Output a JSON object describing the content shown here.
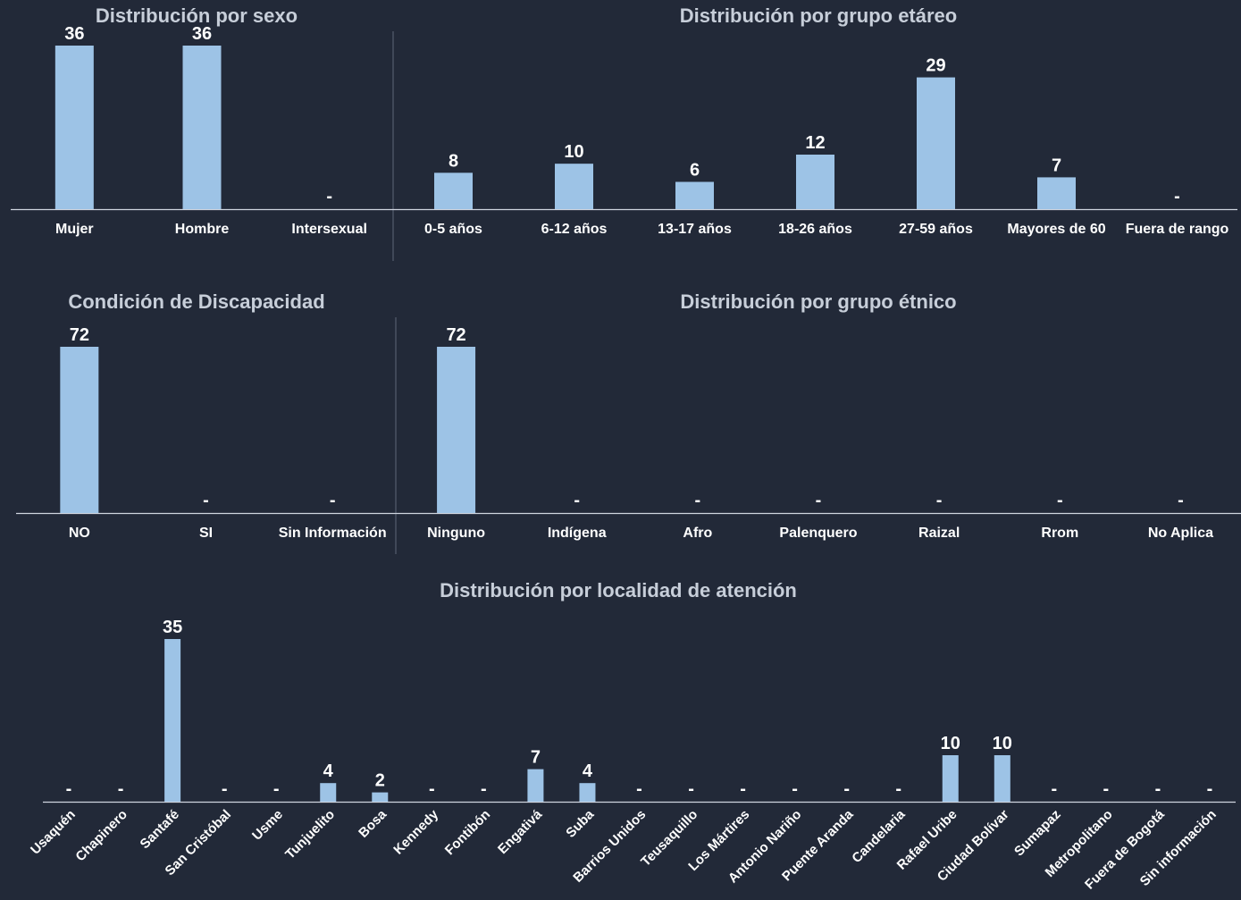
{
  "chart_data": [
    {
      "id": "sexo",
      "type": "bar",
      "title": "Distribución por sexo",
      "categories": [
        "Mujer",
        "Hombre",
        "Intersexual"
      ],
      "values": [
        36,
        36,
        null
      ],
      "labels": [
        "36",
        "36",
        "-"
      ]
    },
    {
      "id": "etareo",
      "type": "bar",
      "title": "Distribución por grupo etáreo",
      "categories": [
        "0-5 años",
        "6-12 años",
        "13-17 años",
        "18-26 años",
        "27-59 años",
        "Mayores de 60",
        "Fuera de rango"
      ],
      "values": [
        8,
        10,
        6,
        12,
        29,
        7,
        null
      ],
      "labels": [
        "8",
        "10",
        "6",
        "12",
        "29",
        "7",
        "-"
      ]
    },
    {
      "id": "discapacidad",
      "type": "bar",
      "title": "Condición de Discapacidad",
      "categories": [
        "NO",
        "SI",
        "Sin Información"
      ],
      "values": [
        72,
        null,
        null
      ],
      "labels": [
        "72",
        "-",
        "-"
      ]
    },
    {
      "id": "etnico",
      "type": "bar",
      "title": "Distribución por grupo étnico",
      "categories": [
        "Ninguno",
        "Indígena",
        "Afro",
        "Palenquero",
        "Raizal",
        "Rrom",
        "No Aplica"
      ],
      "values": [
        72,
        null,
        null,
        null,
        null,
        null,
        null
      ],
      "labels": [
        "72",
        "-",
        "-",
        "-",
        "-",
        "-",
        "-"
      ]
    },
    {
      "id": "localidad",
      "type": "bar",
      "title": "Distribución por localidad de atención",
      "categories": [
        "Usaquén",
        "Chapinero",
        "Santafé",
        "San Cristóbal",
        "Usme",
        "Tunjuelito",
        "Bosa",
        "Kennedy",
        "Fontibón",
        "Engativá",
        "Suba",
        "Barrios Unidos",
        "Teusaquillo",
        "Los Mártires",
        "Antonio Nariño",
        "Puente Aranda",
        "Candelaria",
        "Rafael Uribe",
        "Ciudad Bolívar",
        "Sumapaz",
        "Metropolitano",
        "Fuera de Bogotá",
        "Sin información"
      ],
      "values": [
        null,
        null,
        35,
        null,
        null,
        4,
        2,
        null,
        null,
        7,
        4,
        null,
        null,
        null,
        null,
        null,
        null,
        10,
        10,
        null,
        null,
        null,
        null
      ],
      "labels": [
        "-",
        "-",
        "35",
        "-",
        "-",
        "4",
        "2",
        "-",
        "-",
        "7",
        "4",
        "-",
        "-",
        "-",
        "-",
        "-",
        "-",
        "10",
        "10",
        "-",
        "-",
        "-",
        "-"
      ]
    }
  ],
  "colors": {
    "background": "#222938",
    "bar": "#9dc3e6",
    "title": "#c7ced9",
    "text": "#ffffff"
  }
}
